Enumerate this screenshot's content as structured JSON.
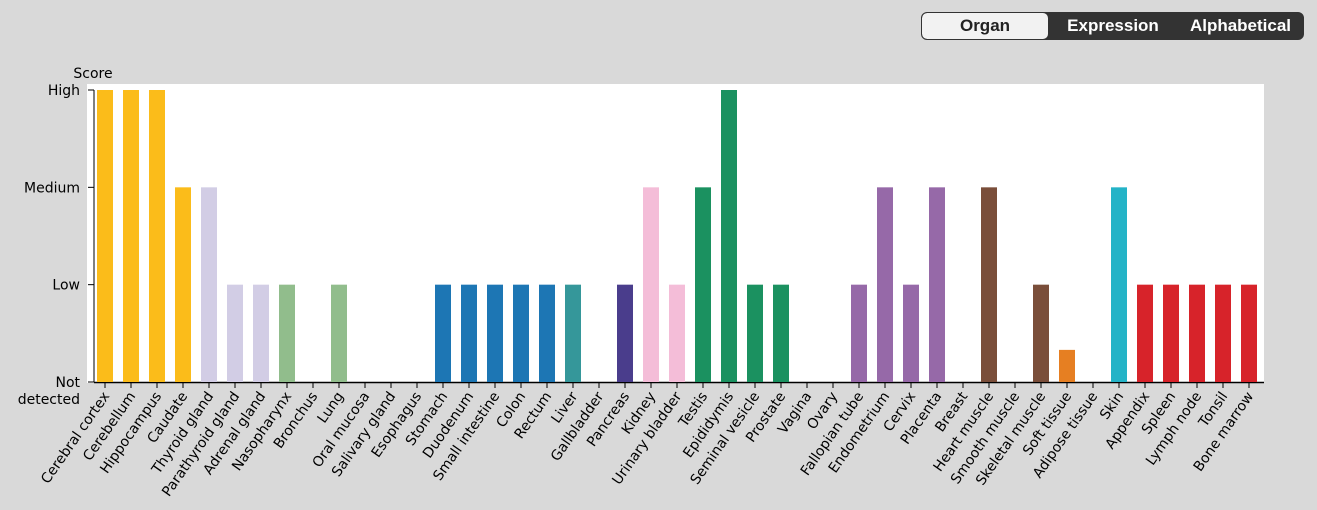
{
  "sort_toggle": {
    "options": [
      "Organ",
      "Expression",
      "Alphabetical"
    ],
    "selected": "Organ"
  },
  "chart_data": {
    "type": "bar",
    "ylabel": "Score",
    "y_ticks": [
      "Not detected",
      "Low",
      "Medium",
      "High"
    ],
    "ylim": [
      0,
      3
    ],
    "grid": false,
    "categories": [
      "Cerebral cortex",
      "Cerebellum",
      "Hippocampus",
      "Caudate",
      "Thyroid gland",
      "Parathyroid gland",
      "Adrenal gland",
      "Nasopharynx",
      "Bronchus",
      "Lung",
      "Oral mucosa",
      "Salivary gland",
      "Esophagus",
      "Stomach",
      "Duodenum",
      "Small intestine",
      "Colon",
      "Rectum",
      "Liver",
      "Gallbladder",
      "Pancreas",
      "Kidney",
      "Urinary bladder",
      "Testis",
      "Epididymis",
      "Seminal vesicle",
      "Prostate",
      "Vagina",
      "Ovary",
      "Fallopian tube",
      "Endometrium",
      "Cervix",
      "Placenta",
      "Breast",
      "Heart muscle",
      "Smooth muscle",
      "Skeletal muscle",
      "Soft tissue",
      "Adipose tissue",
      "Skin",
      "Appendix",
      "Spleen",
      "Lymph node",
      "Tonsil",
      "Bone marrow"
    ],
    "values": [
      3,
      3,
      3,
      2,
      2,
      1,
      1,
      1,
      0,
      1,
      0,
      0,
      0,
      1,
      1,
      1,
      1,
      1,
      1,
      0,
      1,
      2,
      1,
      2,
      3,
      1,
      1,
      0,
      0,
      1,
      2,
      1,
      2,
      0,
      2,
      0,
      1,
      0.33,
      0,
      2,
      1,
      1,
      1,
      1,
      1
    ],
    "colors": [
      "#fbbc1a",
      "#fbbc1a",
      "#fbbc1a",
      "#fbbc1a",
      "#d2cde5",
      "#d2cde5",
      "#d2cde5",
      "#91bd8c",
      "#91bd8c",
      "#91bd8c",
      "#1d76b4",
      "#1d76b4",
      "#1d76b4",
      "#1d76b4",
      "#1d76b4",
      "#1d76b4",
      "#1d76b4",
      "#1d76b4",
      "#35979a",
      "#35979a",
      "#4a3d8c",
      "#f4bdd8",
      "#f4bdd8",
      "#1b9160",
      "#1b9160",
      "#1b9160",
      "#1b9160",
      "#9669a8",
      "#9669a8",
      "#9669a8",
      "#9669a8",
      "#9669a8",
      "#9669a8",
      "#9669a8",
      "#7a4e3a",
      "#7a4e3a",
      "#7a4e3a",
      "#e67f22",
      "#e67f22",
      "#24b3c7",
      "#d7232a",
      "#d7232a",
      "#d7232a",
      "#d7232a",
      "#d7232a"
    ]
  }
}
